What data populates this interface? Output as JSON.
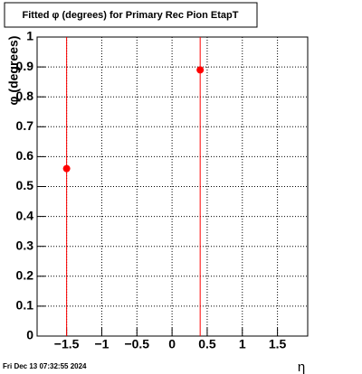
{
  "chart_data": {
    "type": "scatter",
    "title": "Fitted φ (degrees) for Primary Rec Pion EtapT",
    "x_label": "η",
    "y_label": "φ (degrees)",
    "timestamp": "Fri Dec 13 07:32:55 2024",
    "series": [
      {
        "color": "#ff0000",
        "x": [
          -1.5,
          0.4
        ],
        "values": [
          0.56,
          0.89
        ]
      }
    ],
    "xlim": [
      -1.92,
      1.93
    ],
    "ylim": [
      0,
      1
    ],
    "xticks": [
      {
        "value": -1.5,
        "label": "−1.5"
      },
      {
        "value": -1,
        "label": "−1"
      },
      {
        "value": -0.5,
        "label": "−0.5"
      },
      0,
      0.5,
      1,
      1.5
    ],
    "yticks": [
      0,
      0.1,
      0.2,
      0.3,
      0.4,
      0.5,
      0.6,
      0.7,
      0.8,
      0.9,
      1
    ],
    "grid": true
  }
}
